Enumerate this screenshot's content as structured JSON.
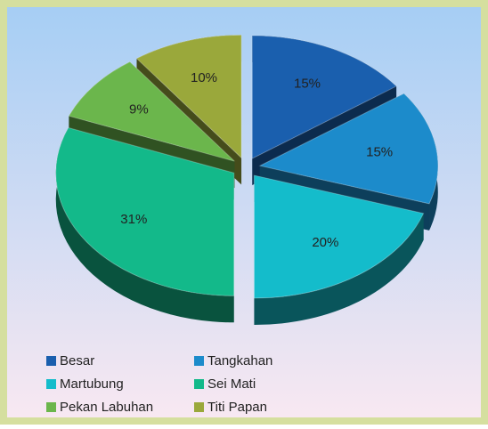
{
  "chart_data": {
    "type": "pie",
    "categories": [
      "Besar",
      "Tangkahan",
      "Martubung",
      "Sei Mati",
      "Pekan Labuhan",
      "Titi Papan"
    ],
    "values": [
      15,
      15,
      20,
      31,
      9,
      10
    ],
    "value_labels": [
      "15%",
      "15%",
      "20%",
      "31%",
      "9%",
      "10%"
    ],
    "colors": [
      "#1a5fae",
      "#1c8bcb",
      "#14bccb",
      "#13b98a",
      "#6bb64c",
      "#9aa83b"
    ],
    "legend": "bottom"
  }
}
